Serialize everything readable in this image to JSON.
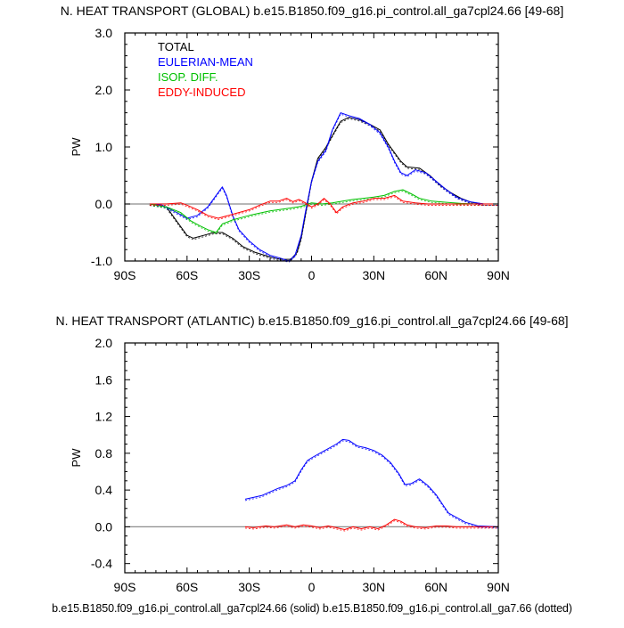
{
  "chart_data": [
    {
      "type": "line",
      "title": "N. HEAT TRANSPORT (GLOBAL) b.e15.B1850.f09_g16.pi_control.all_ga7cpl24.66 [49-68]",
      "xlabel": "",
      "ylabel": "PW",
      "xlim": [
        -90,
        90
      ],
      "ylim": [
        -1.0,
        3.0
      ],
      "xticks": [
        -90,
        -60,
        -30,
        0,
        30,
        60,
        90
      ],
      "xtick_labels": [
        "90S",
        "60S",
        "30S",
        "0",
        "30N",
        "60N",
        "90N"
      ],
      "yticks": [
        -1.0,
        0.0,
        1.0,
        2.0,
        3.0
      ],
      "ytick_labels": [
        "-1.0",
        "0.0",
        "1.0",
        "2.0",
        "3.0"
      ],
      "yminor": 0.2,
      "legend": [
        "TOTAL",
        "EULERIAN-MEAN",
        "ISOP. DIFF.",
        "EDDY-INDUCED"
      ],
      "legend_position": "top-left",
      "series": [
        {
          "name": "TOTAL",
          "color": "#000000",
          "points": [
            [
              -78,
              0
            ],
            [
              -70,
              -0.05
            ],
            [
              -65,
              -0.3
            ],
            [
              -60,
              -0.55
            ],
            [
              -57,
              -0.6
            ],
            [
              -52,
              -0.55
            ],
            [
              -47,
              -0.5
            ],
            [
              -43,
              -0.5
            ],
            [
              -38,
              -0.6
            ],
            [
              -33,
              -0.75
            ],
            [
              -27,
              -0.85
            ],
            [
              -20,
              -0.93
            ],
            [
              -15,
              -0.97
            ],
            [
              -10,
              -0.97
            ],
            [
              -7,
              -0.85
            ],
            [
              -5,
              -0.6
            ],
            [
              -3,
              -0.2
            ],
            [
              0,
              0.4
            ],
            [
              3,
              0.8
            ],
            [
              7,
              1.0
            ],
            [
              10,
              1.2
            ],
            [
              14,
              1.45
            ],
            [
              18,
              1.52
            ],
            [
              23,
              1.48
            ],
            [
              28,
              1.4
            ],
            [
              33,
              1.3
            ],
            [
              37,
              1.05
            ],
            [
              40,
              0.9
            ],
            [
              43,
              0.75
            ],
            [
              46,
              0.65
            ],
            [
              52,
              0.63
            ],
            [
              57,
              0.5
            ],
            [
              62,
              0.33
            ],
            [
              67,
              0.2
            ],
            [
              72,
              0.1
            ],
            [
              77,
              0.03
            ],
            [
              83,
              0
            ],
            [
              90,
              0
            ]
          ]
        },
        {
          "name": "EULERIAN-MEAN",
          "color": "#0000ff",
          "points": [
            [
              -78,
              0
            ],
            [
              -72,
              -0.02
            ],
            [
              -65,
              -0.15
            ],
            [
              -60,
              -0.25
            ],
            [
              -55,
              -0.2
            ],
            [
              -50,
              -0.05
            ],
            [
              -46,
              0.15
            ],
            [
              -43,
              0.3
            ],
            [
              -41,
              0.15
            ],
            [
              -38,
              -0.2
            ],
            [
              -35,
              -0.45
            ],
            [
              -30,
              -0.65
            ],
            [
              -25,
              -0.8
            ],
            [
              -20,
              -0.9
            ],
            [
              -15,
              -0.95
            ],
            [
              -11,
              -1.0
            ],
            [
              -8,
              -0.9
            ],
            [
              -5,
              -0.55
            ],
            [
              -3,
              -0.15
            ],
            [
              0,
              0.4
            ],
            [
              3,
              0.75
            ],
            [
              7,
              0.95
            ],
            [
              10,
              1.3
            ],
            [
              14,
              1.6
            ],
            [
              18,
              1.55
            ],
            [
              23,
              1.5
            ],
            [
              28,
              1.4
            ],
            [
              33,
              1.25
            ],
            [
              37,
              1.0
            ],
            [
              40,
              0.75
            ],
            [
              43,
              0.55
            ],
            [
              46,
              0.5
            ],
            [
              50,
              0.6
            ],
            [
              55,
              0.55
            ],
            [
              60,
              0.4
            ],
            [
              65,
              0.25
            ],
            [
              70,
              0.12
            ],
            [
              76,
              0.04
            ],
            [
              83,
              0
            ],
            [
              90,
              0
            ]
          ]
        },
        {
          "name": "ISOP. DIFF.",
          "color": "#00c000",
          "points": [
            [
              -78,
              0
            ],
            [
              -70,
              -0.05
            ],
            [
              -63,
              -0.15
            ],
            [
              -58,
              -0.3
            ],
            [
              -54,
              -0.38
            ],
            [
              -50,
              -0.45
            ],
            [
              -46,
              -0.5
            ],
            [
              -43,
              -0.35
            ],
            [
              -38,
              -0.28
            ],
            [
              -30,
              -0.2
            ],
            [
              -20,
              -0.12
            ],
            [
              -10,
              -0.07
            ],
            [
              -5,
              -0.04
            ],
            [
              0,
              0.02
            ],
            [
              5,
              0.0
            ],
            [
              10,
              0.02
            ],
            [
              15,
              0.05
            ],
            [
              20,
              0.08
            ],
            [
              25,
              0.1
            ],
            [
              30,
              0.12
            ],
            [
              35,
              0.15
            ],
            [
              40,
              0.22
            ],
            [
              44,
              0.25
            ],
            [
              48,
              0.18
            ],
            [
              52,
              0.1
            ],
            [
              58,
              0.05
            ],
            [
              65,
              0.03
            ],
            [
              72,
              0.01
            ],
            [
              80,
              0
            ],
            [
              90,
              0
            ]
          ]
        },
        {
          "name": "EDDY-INDUCED",
          "color": "#ff0000",
          "points": [
            [
              -78,
              0
            ],
            [
              -70,
              0.0
            ],
            [
              -63,
              0.02
            ],
            [
              -60,
              -0.02
            ],
            [
              -55,
              -0.1
            ],
            [
              -50,
              -0.2
            ],
            [
              -45,
              -0.25
            ],
            [
              -40,
              -0.2
            ],
            [
              -35,
              -0.15
            ],
            [
              -30,
              -0.1
            ],
            [
              -25,
              -0.02
            ],
            [
              -20,
              0.05
            ],
            [
              -16,
              0.05
            ],
            [
              -12,
              0.1
            ],
            [
              -9,
              0.04
            ],
            [
              -6,
              0.08
            ],
            [
              -3,
              0.02
            ],
            [
              0,
              -0.05
            ],
            [
              3,
              0.0
            ],
            [
              6,
              0.1
            ],
            [
              9,
              0.0
            ],
            [
              12,
              -0.15
            ],
            [
              15,
              -0.05
            ],
            [
              20,
              0.02
            ],
            [
              25,
              0.05
            ],
            [
              30,
              0.1
            ],
            [
              35,
              0.1
            ],
            [
              40,
              0.15
            ],
            [
              44,
              0.05
            ],
            [
              50,
              0.02
            ],
            [
              56,
              0.0
            ],
            [
              62,
              0.0
            ],
            [
              70,
              0.0
            ],
            [
              80,
              0
            ],
            [
              90,
              0
            ]
          ]
        }
      ]
    },
    {
      "type": "line",
      "title": "N. HEAT TRANSPORT (ATLANTIC) b.e15.B1850.f09_g16.pi_control.all_ga7cpl24.66 [49-68]",
      "xlabel": "",
      "ylabel": "PW",
      "xlim": [
        -90,
        90
      ],
      "ylim": [
        -0.5,
        2.0
      ],
      "xticks": [
        -90,
        -60,
        -30,
        0,
        30,
        60,
        90
      ],
      "xtick_labels": [
        "90S",
        "60S",
        "30S",
        "0",
        "30N",
        "60N",
        "90N"
      ],
      "yticks": [
        -0.4,
        0.0,
        0.4,
        0.8,
        1.2,
        1.6,
        2.0
      ],
      "ytick_labels": [
        "-0.4",
        "0.0",
        "0.4",
        "0.8",
        "1.2",
        "1.6",
        "2.0"
      ],
      "yminor": 0.1,
      "series": [
        {
          "name": "EULERIAN-MEAN",
          "color": "#0000ff",
          "points": [
            [
              -32,
              0.3
            ],
            [
              -28,
              0.32
            ],
            [
              -24,
              0.34
            ],
            [
              -20,
              0.38
            ],
            [
              -16,
              0.42
            ],
            [
              -12,
              0.45
            ],
            [
              -8,
              0.5
            ],
            [
              -5,
              0.62
            ],
            [
              -2,
              0.72
            ],
            [
              0,
              0.75
            ],
            [
              4,
              0.8
            ],
            [
              8,
              0.85
            ],
            [
              12,
              0.9
            ],
            [
              15,
              0.95
            ],
            [
              18,
              0.94
            ],
            [
              22,
              0.88
            ],
            [
              26,
              0.86
            ],
            [
              30,
              0.83
            ],
            [
              34,
              0.78
            ],
            [
              38,
              0.7
            ],
            [
              42,
              0.58
            ],
            [
              45,
              0.46
            ],
            [
              48,
              0.47
            ],
            [
              52,
              0.52
            ],
            [
              56,
              0.45
            ],
            [
              60,
              0.35
            ],
            [
              63,
              0.25
            ],
            [
              66,
              0.15
            ],
            [
              70,
              0.1
            ],
            [
              74,
              0.05
            ],
            [
              80,
              0.01
            ],
            [
              90,
              0
            ]
          ]
        },
        {
          "name": "EDDY-INDUCED",
          "color": "#ff0000",
          "points": [
            [
              -32,
              0
            ],
            [
              -28,
              -0.01
            ],
            [
              -22,
              0.01
            ],
            [
              -18,
              0.0
            ],
            [
              -12,
              0.02
            ],
            [
              -8,
              0.0
            ],
            [
              -4,
              0.02
            ],
            [
              0,
              0.01
            ],
            [
              4,
              -0.01
            ],
            [
              8,
              0.01
            ],
            [
              12,
              -0.01
            ],
            [
              16,
              -0.03
            ],
            [
              20,
              0.0
            ],
            [
              24,
              -0.02
            ],
            [
              28,
              0.0
            ],
            [
              32,
              -0.02
            ],
            [
              36,
              0.02
            ],
            [
              40,
              0.08
            ],
            [
              43,
              0.06
            ],
            [
              46,
              0.02
            ],
            [
              50,
              0.0
            ],
            [
              55,
              -0.01
            ],
            [
              60,
              0.01
            ],
            [
              65,
              0.01
            ],
            [
              70,
              0
            ],
            [
              80,
              0
            ],
            [
              90,
              0
            ]
          ]
        }
      ]
    }
  ],
  "footer": {
    "caption": "b.e15.B1850.f09_g16.pi_control.all_ga7cpl24.66 (solid) b.e15.B1850.f09_g16.pi_control.all_ga7.66 (dotted)"
  }
}
